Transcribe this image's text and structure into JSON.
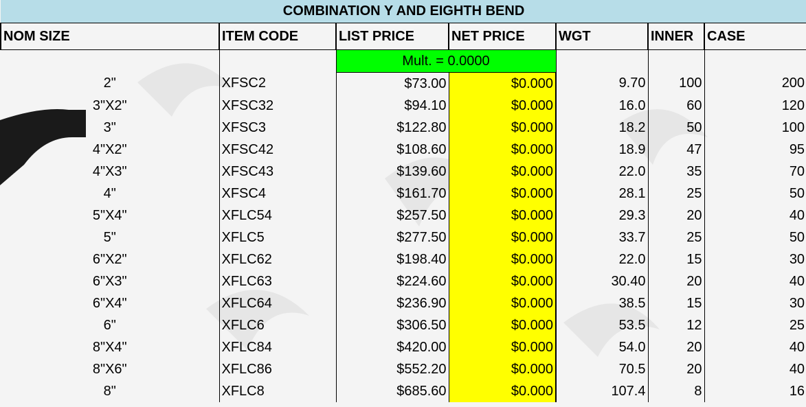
{
  "title": "COMBINATION Y AND EIGHTH BEND",
  "headers": [
    "NOM SIZE",
    "ITEM CODE",
    "LIST PRICE",
    "NET PRICE",
    "WGT",
    "INNER",
    "CASE"
  ],
  "multiplier": "Mult. = 0.0000",
  "rows": [
    [
      "2\"",
      "XFSC2",
      "$73.00",
      "$0.000",
      "9.70",
      "100",
      "200"
    ],
    [
      "3\"X2\"",
      "XFSC32",
      "$94.10",
      "$0.000",
      "16.0",
      "60",
      "120"
    ],
    [
      "3\"",
      "XFSC3",
      "$122.80",
      "$0.000",
      "18.2",
      "50",
      "100"
    ],
    [
      "4\"X2\"",
      "XFSC42",
      "$108.60",
      "$0.000",
      "18.9",
      "47",
      "95"
    ],
    [
      "4\"X3\"",
      "XFSC43",
      "$139.60",
      "$0.000",
      "22.0",
      "35",
      "70"
    ],
    [
      "4\"",
      "XFSC4",
      "$161.70",
      "$0.000",
      "28.1",
      "25",
      "50"
    ],
    [
      "5\"X4\"",
      "XFLC54",
      "$257.50",
      "$0.000",
      "29.3",
      "20",
      "40"
    ],
    [
      "5\"",
      "XFLC5",
      "$277.50",
      "$0.000",
      "33.7",
      "25",
      "50"
    ],
    [
      "6\"X2\"",
      "XFLC62",
      "$198.40",
      "$0.000",
      "22.0",
      "15",
      "30"
    ],
    [
      "6\"X3\"",
      "XFLC63",
      "$224.60",
      "$0.000",
      "30.40",
      "20",
      "40"
    ],
    [
      "6\"X4\"",
      "XFLC64",
      "$236.90",
      "$0.000",
      "38.5",
      "15",
      "30"
    ],
    [
      "6\"",
      "XFLC6",
      "$306.50",
      "$0.000",
      "53.5",
      "12",
      "25"
    ],
    [
      "8\"X4\"",
      "XFLC84",
      "$420.00",
      "$0.000",
      "54.0",
      "20",
      "40"
    ],
    [
      "8\"X6\"",
      "XFLC86",
      "$552.20",
      "$0.000",
      "70.5",
      "20",
      "40"
    ],
    [
      "8\"",
      "XFLC8",
      "$685.60",
      "$0.000",
      "107.4",
      "8",
      "16"
    ]
  ]
}
